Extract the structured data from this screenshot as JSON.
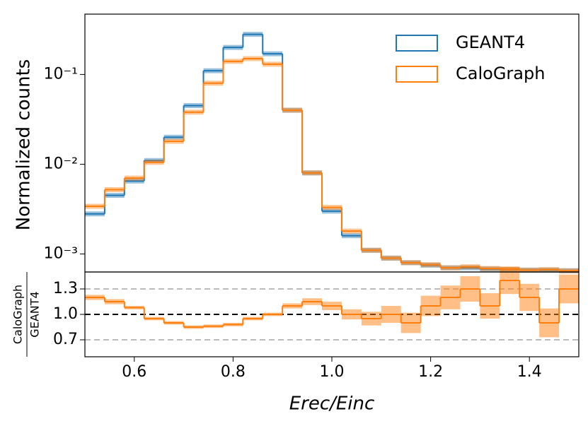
{
  "chart_data": {
    "type": "histogram",
    "y_label": "Normalized counts",
    "x_label": "Erec/Einc",
    "ratio_ylabel": {
      "numerator": "CaloGraph",
      "denominator": "GEANT4"
    },
    "bins": [
      0.5,
      0.54,
      0.58,
      0.62,
      0.66,
      0.7,
      0.74,
      0.78,
      0.82,
      0.86,
      0.9,
      0.94,
      0.98,
      1.02,
      1.06,
      1.1,
      1.14,
      1.18,
      1.22,
      1.26,
      1.3,
      1.34,
      1.38,
      1.42,
      1.46,
      1.5
    ],
    "series": [
      {
        "name": "GEANT4",
        "color": "#1f77b4",
        "values": [
          0.0028,
          0.0045,
          0.0065,
          0.011,
          0.02,
          0.045,
          0.11,
          0.2,
          0.28,
          0.17,
          0.04,
          0.008,
          0.003,
          0.0016,
          0.0011,
          0.0009,
          0.0008,
          0.00075,
          0.0007,
          0.0007,
          0.00068,
          0.00067,
          0.00066,
          0.00066,
          0.00065
        ]
      },
      {
        "name": "CaloGraph",
        "color": "#ff7f0e",
        "values": [
          0.0034,
          0.0052,
          0.007,
          0.0105,
          0.018,
          0.038,
          0.08,
          0.14,
          0.15,
          0.13,
          0.04,
          0.008,
          0.0033,
          0.0018,
          0.0011,
          0.0009,
          0.0008,
          0.00076,
          0.0007,
          0.00072,
          0.00069,
          0.00068,
          0.00066,
          0.00067,
          0.00065
        ]
      }
    ],
    "ratio": [
      1.2,
      1.15,
      1.08,
      0.95,
      0.9,
      0.85,
      0.86,
      0.88,
      0.95,
      1.0,
      1.1,
      1.15,
      1.1,
      1.0,
      0.95,
      1.0,
      0.9,
      1.1,
      1.2,
      1.3,
      1.1,
      1.4,
      1.2,
      0.9,
      1.3
    ],
    "ratio_err": [
      0.03,
      0.03,
      0.02,
      0.02,
      0.02,
      0.02,
      0.02,
      0.02,
      0.02,
      0.02,
      0.03,
      0.04,
      0.05,
      0.06,
      0.08,
      0.1,
      0.12,
      0.12,
      0.14,
      0.15,
      0.15,
      0.16,
      0.16,
      0.17,
      0.17
    ],
    "ratio_color": "#ff7f0e",
    "xlim": [
      0.5,
      1.5
    ],
    "xticks": [
      0.6,
      0.8,
      {
        "value": 1,
        "label": "1.0"
      },
      1.2,
      1.4
    ],
    "ylim": [
      0.00063,
      0.47
    ],
    "log_y": true,
    "yticks": [
      {
        "value": 0.001,
        "label": "10⁻³"
      },
      {
        "value": 0.01,
        "label": "10⁻²"
      },
      {
        "value": 0.1,
        "label": "10⁻¹"
      }
    ],
    "ratio_ylim": [
      0.5,
      1.5
    ],
    "ratio_yticks": [
      0.7,
      {
        "value": 1,
        "label": "1.0"
      },
      1.3
    ],
    "legend": "upper right"
  }
}
